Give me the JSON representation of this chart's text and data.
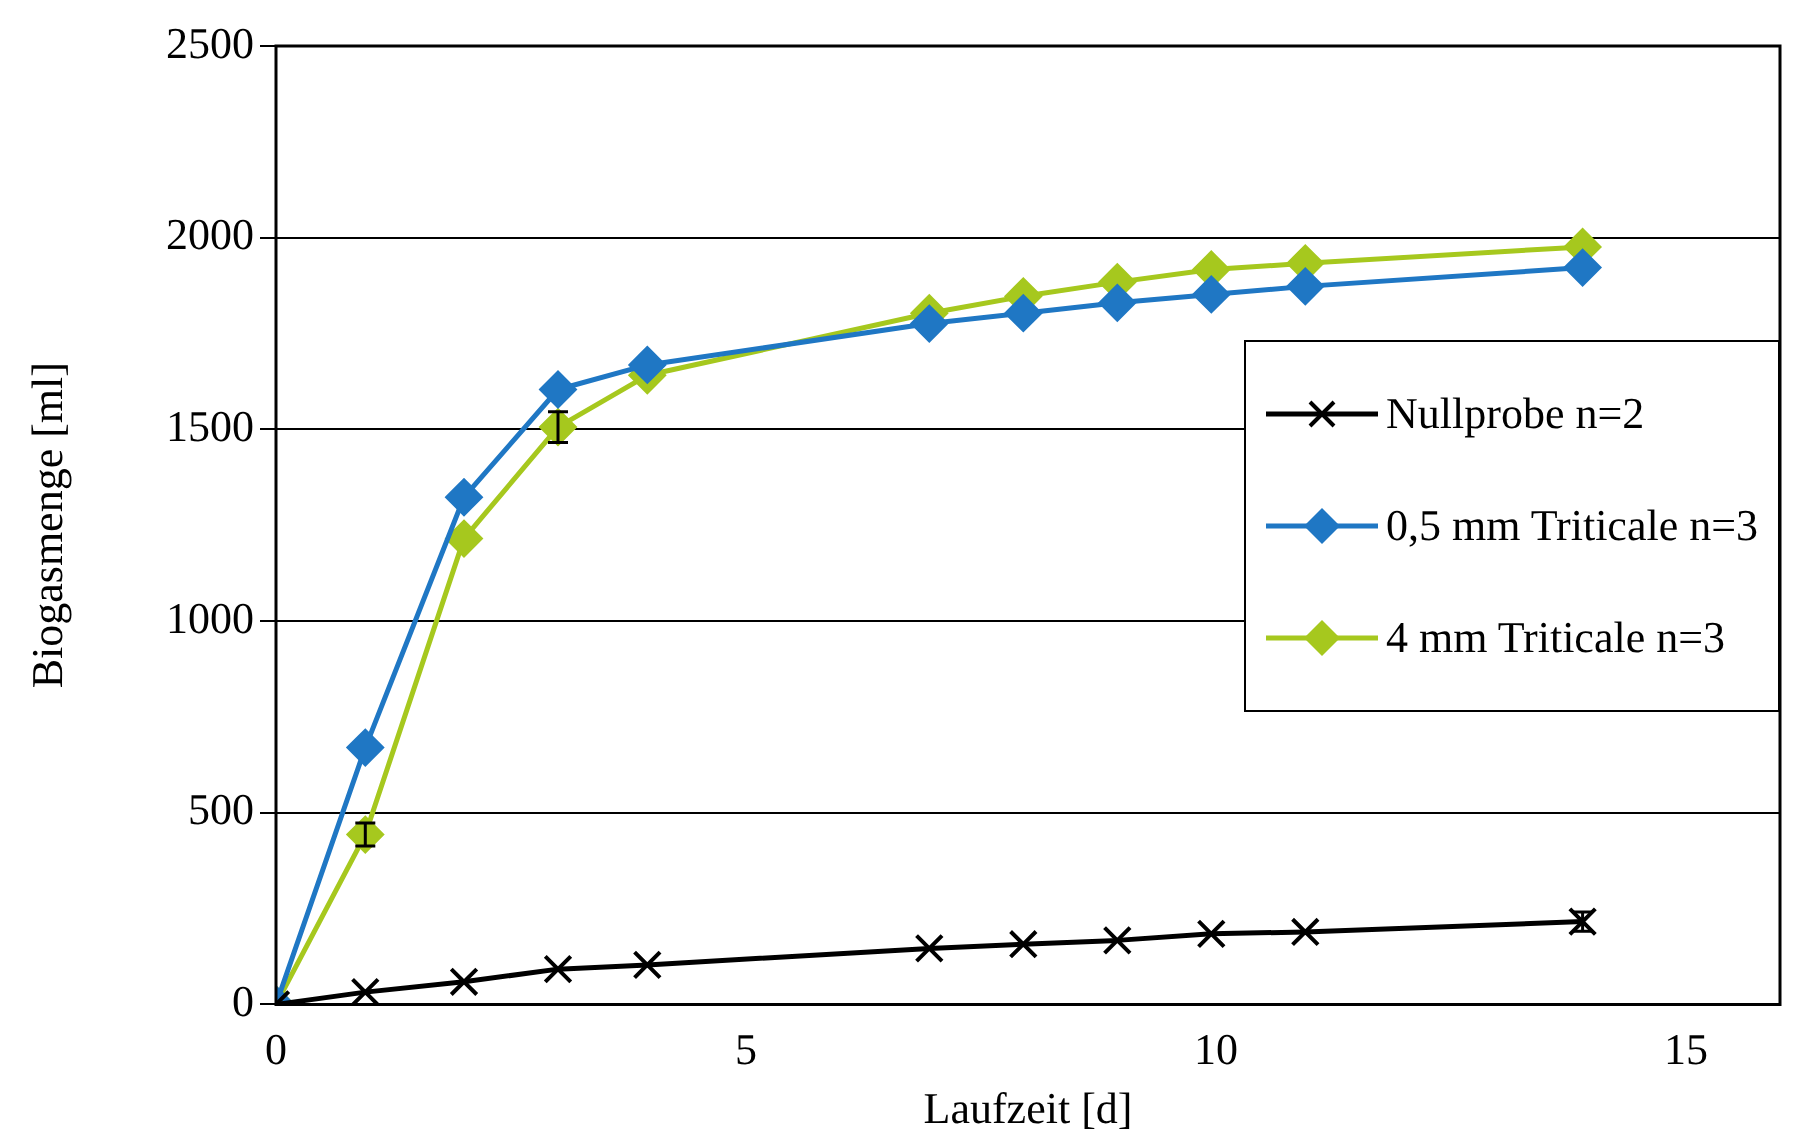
{
  "chart_data": {
    "type": "line",
    "xlabel": "Laufzeit [d]",
    "ylabel": "Biogasmenge [ml]",
    "xlim": [
      0,
      16
    ],
    "xticks": [
      0,
      5,
      10,
      15
    ],
    "ylim": [
      0,
      2500
    ],
    "yticks": [
      0,
      500,
      1000,
      1500,
      2000,
      2500
    ],
    "grid": "y",
    "legend": "right",
    "line_style": "solid",
    "series": [
      {
        "name": "Nullprobe n=2",
        "color": "#000000",
        "marker": "cross",
        "x": [
          0,
          0.95,
          2,
          3,
          3.95,
          6.95,
          7.95,
          8.95,
          9.95,
          10.95,
          13.9
        ],
        "values": [
          0,
          32,
          59,
          92,
          103,
          146,
          157,
          167,
          184,
          189,
          216
        ],
        "errors": [
          null,
          null,
          null,
          null,
          null,
          null,
          null,
          null,
          null,
          null,
          25
        ]
      },
      {
        "name": "0,5 mm Triticale n=3",
        "color": "#1f77c4",
        "marker": "diamond",
        "x": [
          0,
          0.95,
          2,
          3,
          3.95,
          6.95,
          7.95,
          8.95,
          9.95,
          10.95,
          13.9
        ],
        "values": [
          0,
          670,
          1323,
          1604,
          1668,
          1776,
          1803,
          1830,
          1852,
          1873,
          1922
        ]
      },
      {
        "name": "4 mm Triticale n=3",
        "color": "#a6c81e",
        "marker": "diamond",
        "x": [
          0,
          0.95,
          2,
          3,
          3.95,
          6.95,
          7.95,
          8.95,
          9.95,
          10.95,
          13.9
        ],
        "values": [
          0,
          443,
          1215,
          1506,
          1641,
          1803,
          1847,
          1884,
          1917,
          1933,
          1976
        ],
        "errors": [
          null,
          30,
          null,
          40,
          null,
          null,
          null,
          null,
          null,
          null,
          null
        ]
      }
    ]
  }
}
